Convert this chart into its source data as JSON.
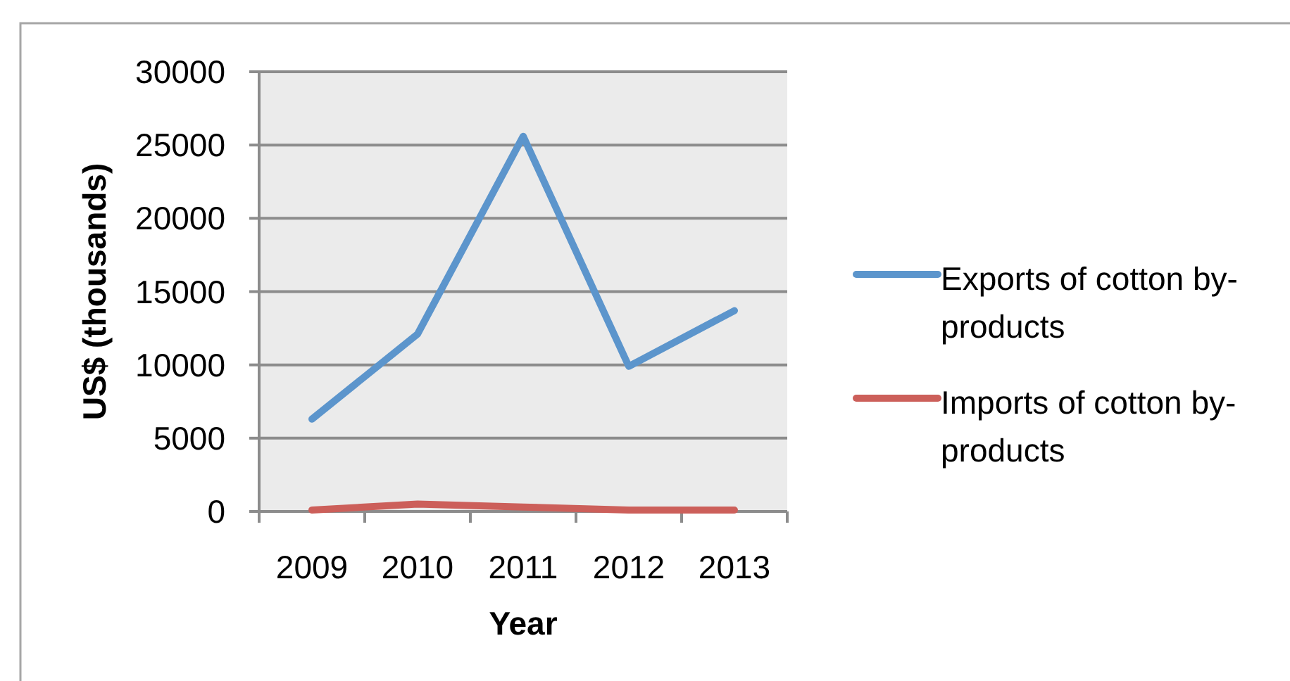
{
  "chart_data": {
    "type": "line",
    "xlabel": "Year",
    "ylabel": "US$ (thousands)",
    "categories": [
      "2009",
      "2010",
      "2011",
      "2012",
      "2013"
    ],
    "series": [
      {
        "name": "Exports of cotton by-products",
        "color": "#5c95cc",
        "values": [
          6300,
          12100,
          25600,
          9900,
          13700
        ]
      },
      {
        "name": "Imports of cotton by-products",
        "color": "#cc5f5a",
        "values": [
          100,
          500,
          300,
          100,
          100
        ]
      }
    ],
    "ylim": [
      0,
      30000
    ],
    "yticks": [
      0,
      5000,
      10000,
      15000,
      20000,
      25000,
      30000
    ],
    "grid": "y",
    "legend": "right"
  }
}
